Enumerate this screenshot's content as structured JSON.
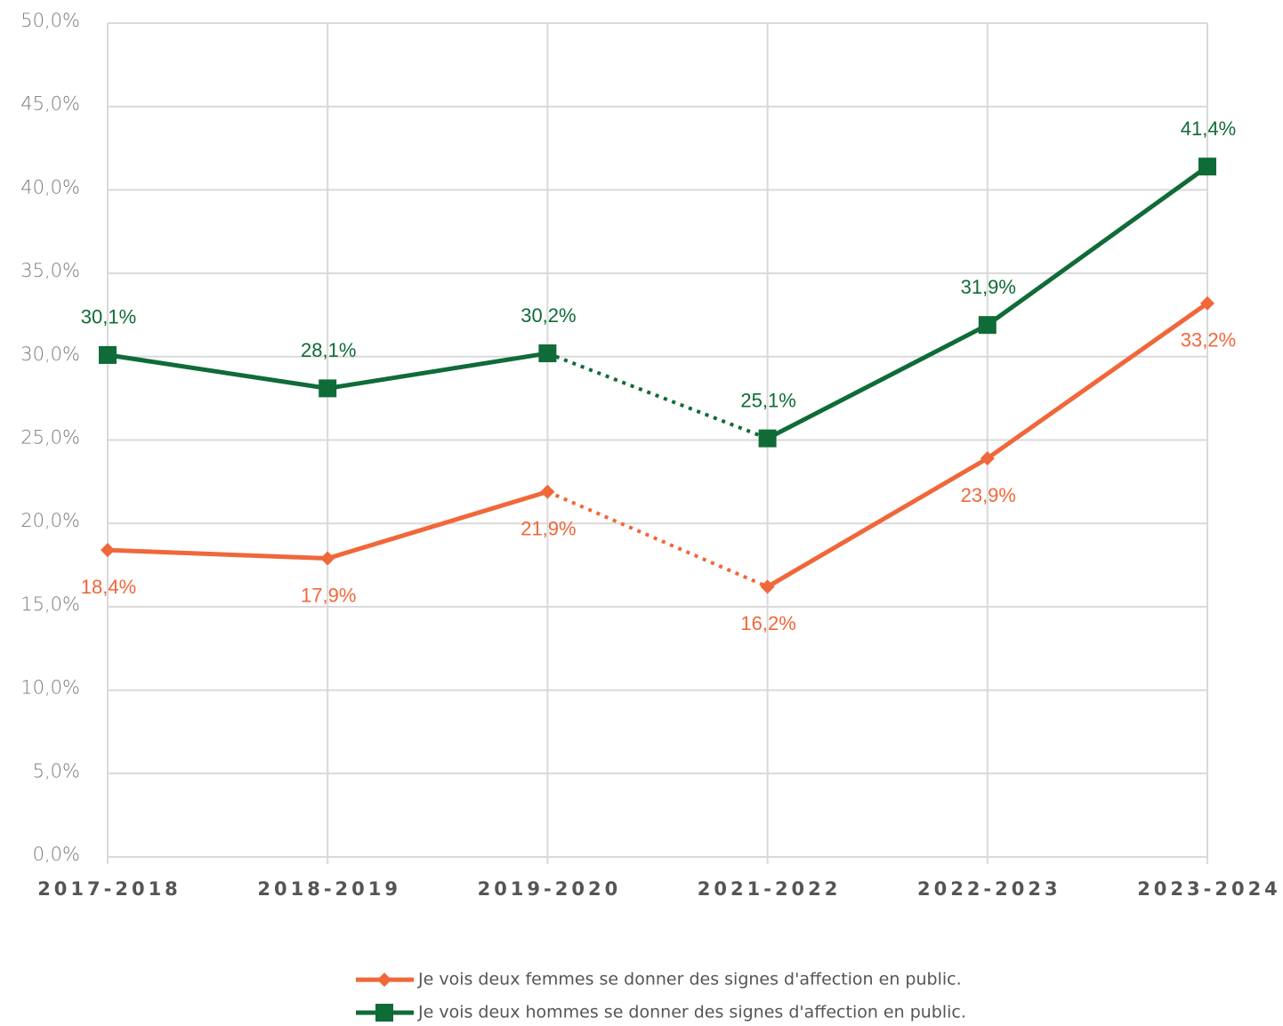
{
  "chart_data": {
    "type": "line",
    "categories": [
      "2017-2018",
      "2018-2019",
      "2019-2020",
      "2021-2022",
      "2022-2023",
      "2023-2024"
    ],
    "series": [
      {
        "name": "Je vois deux femmes se donner des signes d'affection en public.",
        "color": "#f0673a",
        "marker": "diamond",
        "values": [
          18.4,
          17.9,
          21.9,
          16.2,
          23.9,
          33.2
        ],
        "value_labels": [
          "18,4%",
          "17,9%",
          "21,9%",
          "16,2%",
          "23,9%",
          "33,2%"
        ],
        "label_position": "below"
      },
      {
        "name": "Je vois deux hommes se donner des signes d'affection en public.",
        "color": "#0f6b37",
        "marker": "square",
        "values": [
          30.1,
          28.1,
          30.2,
          25.1,
          31.9,
          41.4
        ],
        "value_labels": [
          "30,1%",
          "28,1%",
          "30,2%",
          "25,1%",
          "31,9%",
          "41,4%"
        ],
        "label_position": "above"
      }
    ],
    "dotted_segments": [
      2
    ],
    "ylim": [
      0,
      50
    ],
    "yticks": [
      {
        "value": 0,
        "label": "0,0%"
      },
      {
        "value": 5,
        "label": "5,0%"
      },
      {
        "value": 10,
        "label": "10,0%"
      },
      {
        "value": 15,
        "label": "15,0%"
      },
      {
        "value": 20,
        "label": "20,0%"
      },
      {
        "value": 25,
        "label": "25,0%"
      },
      {
        "value": 30,
        "label": "30,0%"
      },
      {
        "value": 35,
        "label": "35,0%"
      },
      {
        "value": 40,
        "label": "40,0%"
      },
      {
        "value": 45,
        "label": "45,0%"
      },
      {
        "value": 50,
        "label": "50,0%"
      }
    ],
    "grid": true,
    "legend": "bottom"
  }
}
